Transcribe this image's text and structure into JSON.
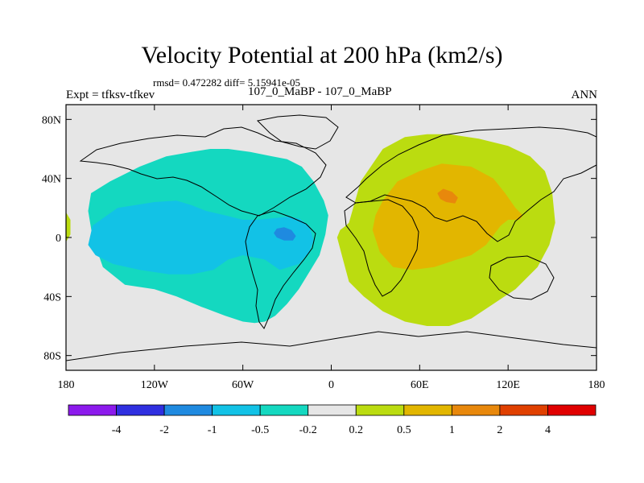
{
  "chart_data": {
    "type": "contour-map",
    "title": "Velocity Potential at 200 hPa (km2/s)",
    "stats_line": "rmsd= 0.472282 diff= 5.15941e-05",
    "experiment_label": "Expt = tfksv-tfkev",
    "period_label": "107_0_MaBP - 107_0_MaBP",
    "season_label": "ANN",
    "xlabel": "",
    "ylabel": "",
    "x_range": [
      -180,
      180
    ],
    "y_range": [
      -90,
      90
    ],
    "x_ticks": [
      {
        "value": -180,
        "label": "180"
      },
      {
        "value": -120,
        "label": "120W"
      },
      {
        "value": -60,
        "label": "60W"
      },
      {
        "value": 0,
        "label": "0"
      },
      {
        "value": 60,
        "label": "60E"
      },
      {
        "value": 120,
        "label": "120E"
      },
      {
        "value": 180,
        "label": "180"
      }
    ],
    "y_ticks": [
      {
        "value": 80,
        "label": "80N"
      },
      {
        "value": 40,
        "label": "40N"
      },
      {
        "value": 0,
        "label": "0"
      },
      {
        "value": -40,
        "label": "40S"
      },
      {
        "value": -80,
        "label": "80S"
      }
    ],
    "colorbar": {
      "colors": [
        "#8c1aec",
        "#2f2fe0",
        "#1f8ae0",
        "#12c2e6",
        "#14d8c0",
        "#e6e6e6",
        "#bbdc10",
        "#e2b600",
        "#e8880c",
        "#e04000",
        "#e00000"
      ],
      "labels": [
        "-4",
        "-2",
        "-1",
        "-0.5",
        "-0.2",
        "0.2",
        "0.5",
        "1",
        "2",
        "4"
      ]
    },
    "regions": [
      {
        "name": "western-teal-region",
        "level_range": "-0.5 to -0.2",
        "color": "#14d8c0",
        "lon": [
          -163,
          -150,
          -130,
          -112,
          -95,
          -82,
          -70,
          -55,
          -40,
          -30,
          -20,
          -12,
          -5,
          -2,
          -4,
          -8,
          -14,
          -22,
          -30,
          -38,
          -45,
          -52,
          -60,
          -72,
          -88,
          -105,
          -120,
          -140,
          -155,
          -162,
          -165
        ],
        "lat": [
          30,
          38,
          48,
          55,
          58,
          60,
          60,
          58,
          55,
          53,
          48,
          38,
          25,
          15,
          2,
          -12,
          -22,
          -35,
          -45,
          -53,
          -57,
          -58,
          -57,
          -53,
          -47,
          -40,
          -35,
          -32,
          -20,
          0,
          18
        ]
      },
      {
        "name": "western-blue-region",
        "level_range": "-1 to -0.5",
        "color": "#12c2e6",
        "lon": [
          -162,
          -145,
          -120,
          -105,
          -95,
          -85,
          -72,
          -60,
          -50,
          -40,
          -30,
          -22,
          -15,
          -12,
          -15,
          -22,
          -35,
          -45,
          -60,
          -70,
          -80,
          -95,
          -110,
          -130,
          -148,
          -160,
          -165
        ],
        "lat": [
          8,
          20,
          24,
          25,
          22,
          18,
          15,
          12,
          12,
          13,
          14,
          13,
          8,
          -2,
          -10,
          -18,
          -22,
          -15,
          -12,
          -15,
          -22,
          -25,
          -25,
          -22,
          -18,
          -12,
          -5
        ]
      },
      {
        "name": "western-dark-blue-region",
        "level_range": "-2 to -1",
        "color": "#1f8ae0",
        "lon": [
          -37,
          -32,
          -27,
          -24,
          -26,
          -32,
          -37,
          -39
        ],
        "lat": [
          6,
          7,
          5,
          1,
          -2,
          -2,
          0,
          3
        ]
      },
      {
        "name": "eastern-yellow-green-region",
        "level_range": "0.2 to 0.5",
        "color": "#bbdc10",
        "lon": [
          12,
          20,
          35,
          50,
          65,
          80,
          100,
          120,
          135,
          145,
          150,
          152,
          148,
          140,
          125,
          110,
          95,
          80,
          65,
          50,
          35,
          22,
          12,
          8,
          4,
          6,
          10
        ],
        "lat": [
          10,
          38,
          60,
          68,
          70,
          70,
          67,
          62,
          55,
          45,
          30,
          10,
          -5,
          -20,
          -35,
          -45,
          -55,
          -60,
          -60,
          -57,
          -50,
          -40,
          -30,
          -15,
          0,
          5,
          8
        ],
        "extra_patch": {
          "lon": [
            -180,
            -177,
            -177,
            -180
          ],
          "lat": [
            17,
            12,
            2,
            -3
          ]
        }
      },
      {
        "name": "eastern-orange-region",
        "level_range": "0.5 to 1",
        "color": "#e2b600",
        "lon": [
          35,
          45,
          60,
          75,
          95,
          110,
          118,
          125,
          130,
          128,
          120,
          115,
          105,
          95,
          85,
          70,
          55,
          42,
          33,
          28,
          30
        ],
        "lat": [
          25,
          38,
          45,
          50,
          48,
          40,
          30,
          20,
          15,
          12,
          12,
          8,
          -5,
          -12,
          -15,
          -20,
          -22,
          -20,
          -10,
          5,
          15
        ]
      },
      {
        "name": "eastern-dark-orange-region",
        "level_range": "1 to 2",
        "color": "#e8880c",
        "lon": [
          72,
          76,
          82,
          86,
          84,
          78,
          74
        ],
        "lat": [
          30,
          33,
          31,
          27,
          23,
          24,
          26
        ]
      }
    ]
  }
}
